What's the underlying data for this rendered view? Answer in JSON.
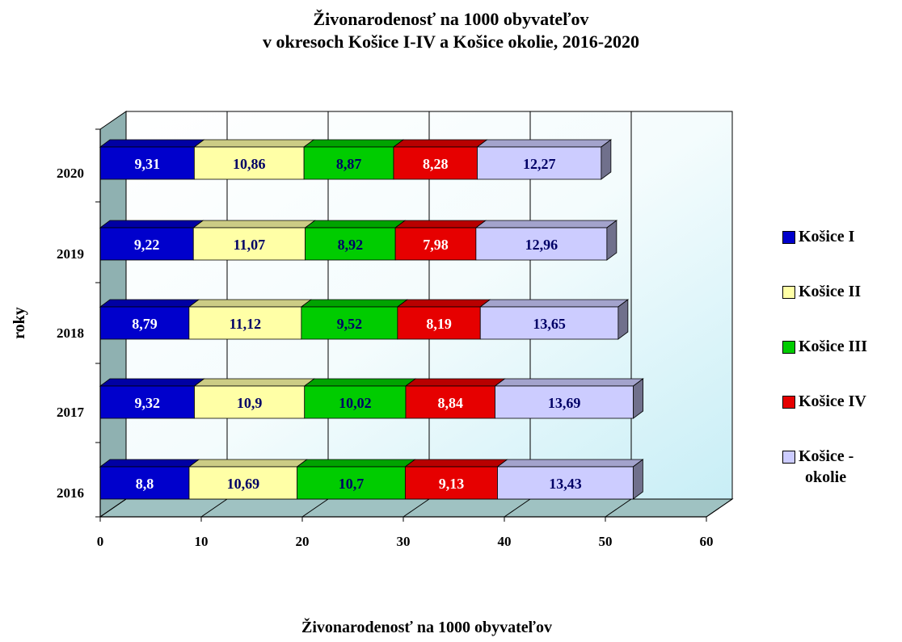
{
  "chart_data": {
    "type": "bar",
    "orientation": "horizontal",
    "stacked": true,
    "three_d": true,
    "title_lines": [
      "Živonarodenosť  na 1000 obyvateľov",
      "v okresoch Košice I-IV a Košice okolie, 2016-2020"
    ],
    "xlabel": "Živonarodenosť na 1000 obyvateľov",
    "ylabel": "roky",
    "xlim": [
      0,
      60
    ],
    "x_ticks": [
      "0",
      "10",
      "20",
      "30",
      "40",
      "50",
      "60"
    ],
    "categories": [
      "2020",
      "2019",
      "2018",
      "2017",
      "2016"
    ],
    "grid": "vertical",
    "legend_position": "right",
    "series": [
      {
        "name": "Košice I",
        "color": "#0000cc",
        "label_color": "#ffffff",
        "values": [
          9.31,
          9.22,
          8.79,
          9.32,
          8.8
        ],
        "labels": [
          "9,31",
          "9,22",
          "8,79",
          "9,32",
          "8,8"
        ]
      },
      {
        "name": "Košice II",
        "color": "#ffffa6",
        "label_color": "#000066",
        "values": [
          10.86,
          11.07,
          11.12,
          10.9,
          10.69
        ],
        "labels": [
          "10,86",
          "11,07",
          "11,12",
          "10,9",
          "10,69"
        ]
      },
      {
        "name": "Košice III",
        "color": "#00cc00",
        "label_color": "#000066",
        "values": [
          8.87,
          8.92,
          9.52,
          10.02,
          10.7
        ],
        "labels": [
          "8,87",
          "8,92",
          "9,52",
          "10,02",
          "10,7"
        ]
      },
      {
        "name": "Košice IV",
        "color": "#e60000",
        "label_color": "#ffffff",
        "values": [
          8.28,
          7.98,
          8.19,
          8.84,
          9.13
        ],
        "labels": [
          "8,28",
          "7,98",
          "8,19",
          "8,84",
          "9,13"
        ]
      },
      {
        "name": "Košice - okolie",
        "color": "#ccccff",
        "label_color": "#000066",
        "values": [
          12.27,
          12.96,
          13.65,
          13.69,
          13.43
        ],
        "labels": [
          "12,27",
          "12,96",
          "13,65",
          "13,69",
          "13,43"
        ]
      }
    ],
    "legend_lines": [
      [
        "Košice I"
      ],
      [
        "Košice II"
      ],
      [
        "Košice III"
      ],
      [
        "Košice IV"
      ],
      [
        "Košice -",
        "okolie"
      ]
    ]
  }
}
